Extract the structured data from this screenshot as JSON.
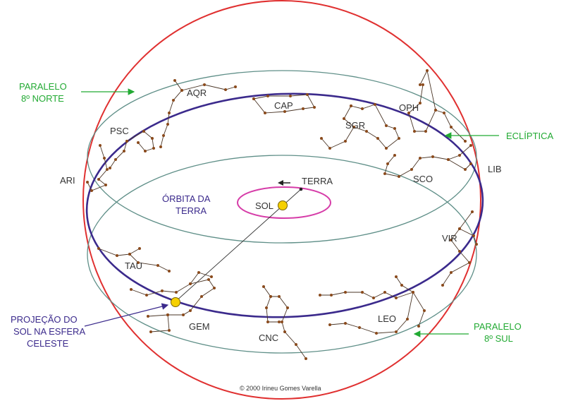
{
  "labels": {
    "aqr": "AQR",
    "cap": "CAP",
    "oph": "OPH",
    "psc": "PSC",
    "sgr": "SGR",
    "ari": "ARI",
    "sco": "SCO",
    "lib": "LIB",
    "vir": "VIR",
    "tau": "TAU",
    "gem": "GEM",
    "cnc": "CNC",
    "leo": "LEO",
    "terra": "TERRA",
    "sol": "SOL",
    "orbita_line1": "ÓRBITA DA",
    "orbita_line2": "TERRA",
    "ecliptica": "ECLÍPTICA",
    "paralelo_norte_line1": "PARALELO",
    "paralelo_norte_line2": "8º NORTE",
    "paralelo_sul_line1": "PARALELO",
    "paralelo_sul_line2": "8º SUL",
    "projecao_line1": "PROJEÇÃO DO",
    "projecao_line2": "SOL NA ESFERA",
    "projecao_line3": "CELESTE",
    "copyright": "© 2000 Irineu Gomes Varella"
  },
  "colors": {
    "sphere": "#e03030",
    "ecliptic": "#3b2a8c",
    "parallel": "#5f8f88",
    "orbit": "#d63ca8",
    "sun": "#f5d000",
    "star": "#8a4a1c",
    "star_line": "#4a3526",
    "green_text": "#22aa33",
    "blue_text": "#3b2a8c"
  }
}
